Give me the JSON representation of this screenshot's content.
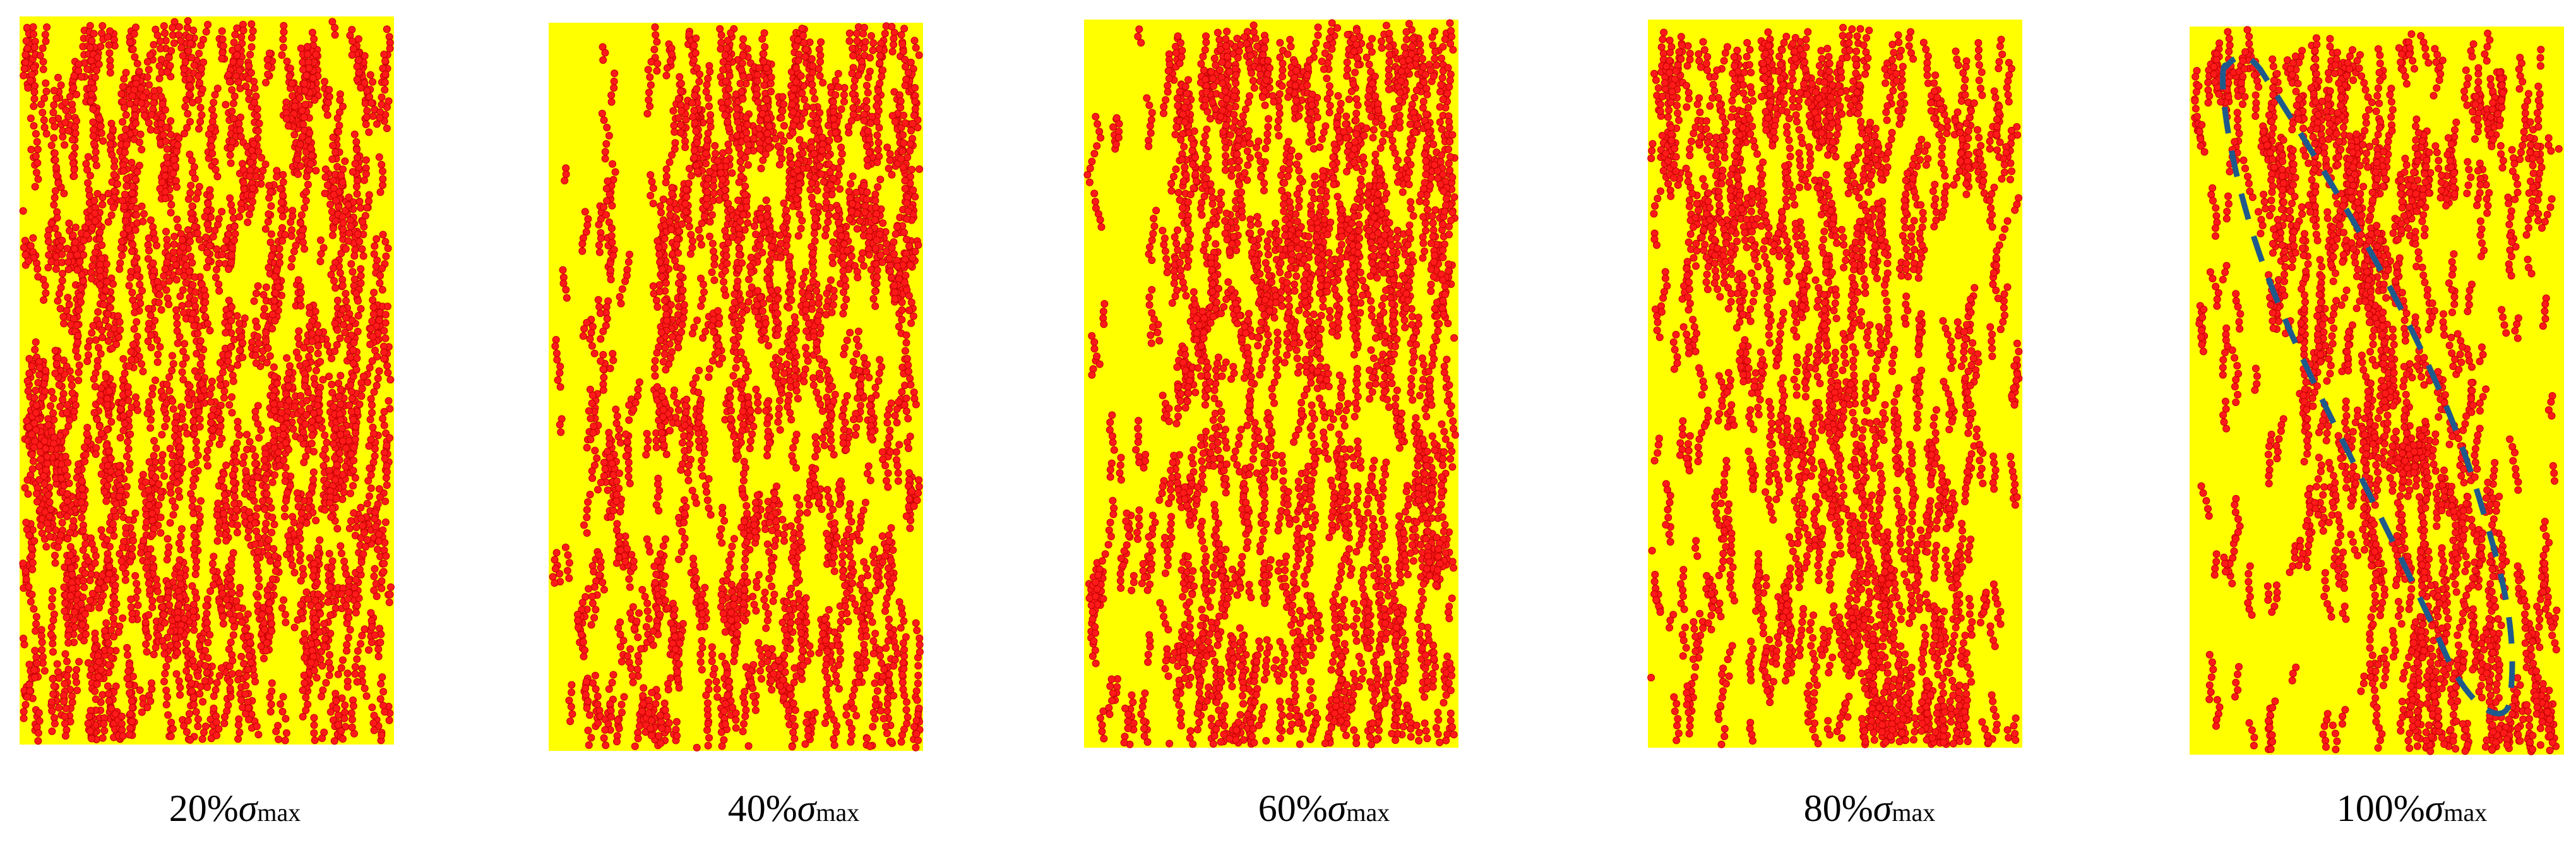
{
  "panels": [
    {
      "label": {
        "percent": "20%",
        "symbol": "σ",
        "subscript": "max"
      }
    },
    {
      "label": {
        "percent": "40%",
        "symbol": "σ",
        "subscript": "max"
      }
    },
    {
      "label": {
        "percent": "60%",
        "symbol": "σ",
        "subscript": "max"
      }
    },
    {
      "label": {
        "percent": "80%",
        "symbol": "σ",
        "subscript": "max"
      }
    },
    {
      "label": {
        "percent": "100%",
        "symbol": "σ",
        "subscript": "max"
      }
    }
  ]
}
